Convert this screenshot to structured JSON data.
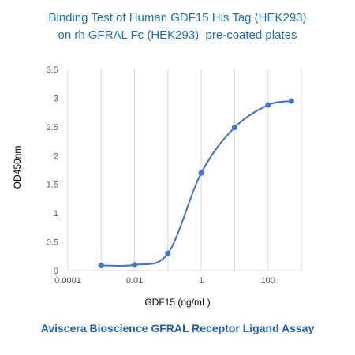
{
  "chart_data": {
    "type": "line",
    "title": "Binding Test of Human GDF15 His Tag (HEK293)",
    "subtitle": "on rh GFRAL Fc (HEK293)  pre-coated plates",
    "xlabel": "GDF15 (ng/mL)",
    "ylabel": "OD450nm",
    "xscale": "log",
    "xlim": [
      0.0001,
      1000
    ],
    "ylim": [
      0,
      3.5
    ],
    "xticks": [
      "0.0001",
      "0.01",
      "1",
      "100"
    ],
    "yticks": [
      "0",
      "0.5",
      "1",
      "1.5",
      "2",
      "2.5",
      "3",
      "3.5"
    ],
    "grid": "vertical",
    "series": [
      {
        "x": [
          0.001,
          0.01,
          0.1,
          1,
          10,
          100,
          500
        ],
        "y": [
          0.09,
          0.1,
          0.3,
          1.7,
          2.49,
          2.88,
          2.95
        ]
      }
    ]
  },
  "footer": "Aviscera Bioscience GFRAL Receptor Ligand Assay",
  "colors": {
    "title": "#1f6fb3",
    "footer": "#1f5fa8",
    "series": "#4472c4",
    "grid": "#d9d9d9",
    "axis_text": "#595959"
  }
}
